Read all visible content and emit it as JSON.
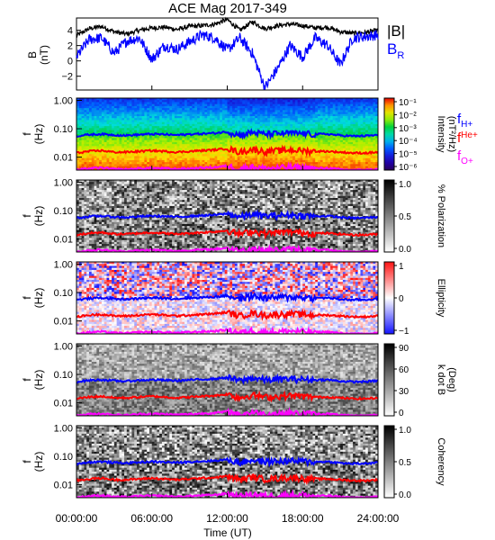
{
  "title": "ACE Mag 2017-349",
  "xaxis": {
    "label": "Time (UT)",
    "ticks": [
      "00:00:00",
      "06:00:00",
      "12:00:00",
      "18:00:00",
      "24:00:00"
    ],
    "range_hours": [
      0,
      24
    ]
  },
  "colors": {
    "B_total": "#000000",
    "B_R": "#0000ff",
    "H": "#0000ff",
    "He": "#ff0000",
    "O": "#ff00ff"
  },
  "panel_b": {
    "ylabel": "B",
    "yunit": "(nT)",
    "yticks": [
      "4",
      "2",
      "0",
      "−2"
    ],
    "yrange": [
      -3.8,
      5.6
    ],
    "legend_total": "|B|",
    "legend_r": "B",
    "legend_r_sub": "R"
  },
  "freq_axis": {
    "ylabel": "f",
    "yunit": "(Hz)",
    "ticks": [
      "1.00",
      "0.10",
      "0.01"
    ],
    "range_hz": [
      0.0035,
      1.2
    ],
    "log": true
  },
  "gyro_legend": [
    {
      "base": "f",
      "sub": "H+",
      "color": "#0000ff"
    },
    {
      "base": "f",
      "sub": "He+",
      "color": "#ff0000"
    },
    {
      "base": "f",
      "sub": "O+",
      "color": "#ff00ff"
    }
  ],
  "panels": [
    {
      "key": "intensity",
      "colorbar_label_1": "Intensity",
      "colorbar_label_2": "(nT²/Hz)",
      "colorbar_ticks": [
        "10⁻¹",
        "10⁻²",
        "10⁻³",
        "10⁻⁴",
        "10⁻⁵",
        "10⁻⁶"
      ],
      "colormap": "rainbow"
    },
    {
      "key": "polarization",
      "colorbar_label_1": "% Polarization",
      "colorbar_label_2": "",
      "colorbar_ticks": [
        "1.0",
        "0.5",
        "0.0"
      ],
      "colormap": "gray"
    },
    {
      "key": "ellipticity",
      "colorbar_label_1": "Ellipticity",
      "colorbar_label_2": "",
      "colorbar_ticks": [
        "1",
        "0",
        "−1"
      ],
      "colormap": "bwr"
    },
    {
      "key": "kdotb",
      "colorbar_label_1": "k dot B",
      "colorbar_label_2": "(Deg)",
      "colorbar_ticks": [
        "90",
        "60",
        "30",
        "0"
      ],
      "colormap": "gray"
    },
    {
      "key": "coherency",
      "colorbar_label_1": "Coherency",
      "colorbar_label_2": "",
      "colorbar_ticks": [
        "1.0",
        "0.5",
        "0.0"
      ],
      "colormap": "gray"
    }
  ],
  "chart_data": {
    "type": "line",
    "title": "ACE Mag 2017-349",
    "xlabel": "Time (UT)",
    "x_hours": [
      0,
      1,
      2,
      3,
      4,
      5,
      6,
      7,
      8,
      9,
      10,
      11,
      12,
      13,
      14,
      15,
      16,
      17,
      18,
      19,
      20,
      21,
      22,
      23,
      24
    ],
    "series": [
      {
        "name": "|B|",
        "values": [
          3.3,
          4.2,
          4.5,
          3.8,
          3.5,
          4.0,
          4.3,
          4.4,
          4.1,
          4.5,
          4.6,
          4.8,
          5.4,
          4.0,
          5.1,
          4.2,
          4.6,
          4.8,
          4.6,
          4.3,
          4.4,
          3.8,
          3.6,
          3.7,
          4.0
        ]
      },
      {
        "name": "B_R",
        "values": [
          0.5,
          2.8,
          3.0,
          1.0,
          2.6,
          3.0,
          0.2,
          2.0,
          1.5,
          2.5,
          3.4,
          3.0,
          1.4,
          3.0,
          1.0,
          -3.5,
          -1.0,
          2.0,
          0.5,
          3.0,
          2.0,
          -0.5,
          3.0,
          3.2,
          3.4
        ]
      },
      {
        "name": "f_H+ (Hz)",
        "values": [
          0.055,
          0.062,
          0.065,
          0.06,
          0.058,
          0.062,
          0.065,
          0.063,
          0.06,
          0.064,
          0.067,
          0.07,
          0.078,
          0.06,
          0.075,
          0.065,
          0.068,
          0.07,
          0.068,
          0.064,
          0.065,
          0.058,
          0.055,
          0.056,
          0.06
        ]
      },
      {
        "name": "f_He+ (Hz)",
        "values": [
          0.014,
          0.016,
          0.017,
          0.015,
          0.015,
          0.016,
          0.017,
          0.016,
          0.015,
          0.016,
          0.017,
          0.018,
          0.02,
          0.015,
          0.019,
          0.016,
          0.017,
          0.018,
          0.017,
          0.016,
          0.016,
          0.015,
          0.014,
          0.014,
          0.015
        ]
      },
      {
        "name": "f_O+ (Hz)",
        "values": [
          0.0035,
          0.004,
          0.0042,
          0.0038,
          0.0037,
          0.004,
          0.0041,
          0.004,
          0.0038,
          0.004,
          0.0042,
          0.0044,
          0.0049,
          0.0038,
          0.0047,
          0.004,
          0.0042,
          0.0044,
          0.0043,
          0.004,
          0.0041,
          0.0037,
          0.0035,
          0.0035,
          0.0038
        ]
      }
    ],
    "b_ylim": [
      -3.8,
      5.6
    ],
    "f_ylim_log": [
      0.0035,
      1.2
    ]
  }
}
